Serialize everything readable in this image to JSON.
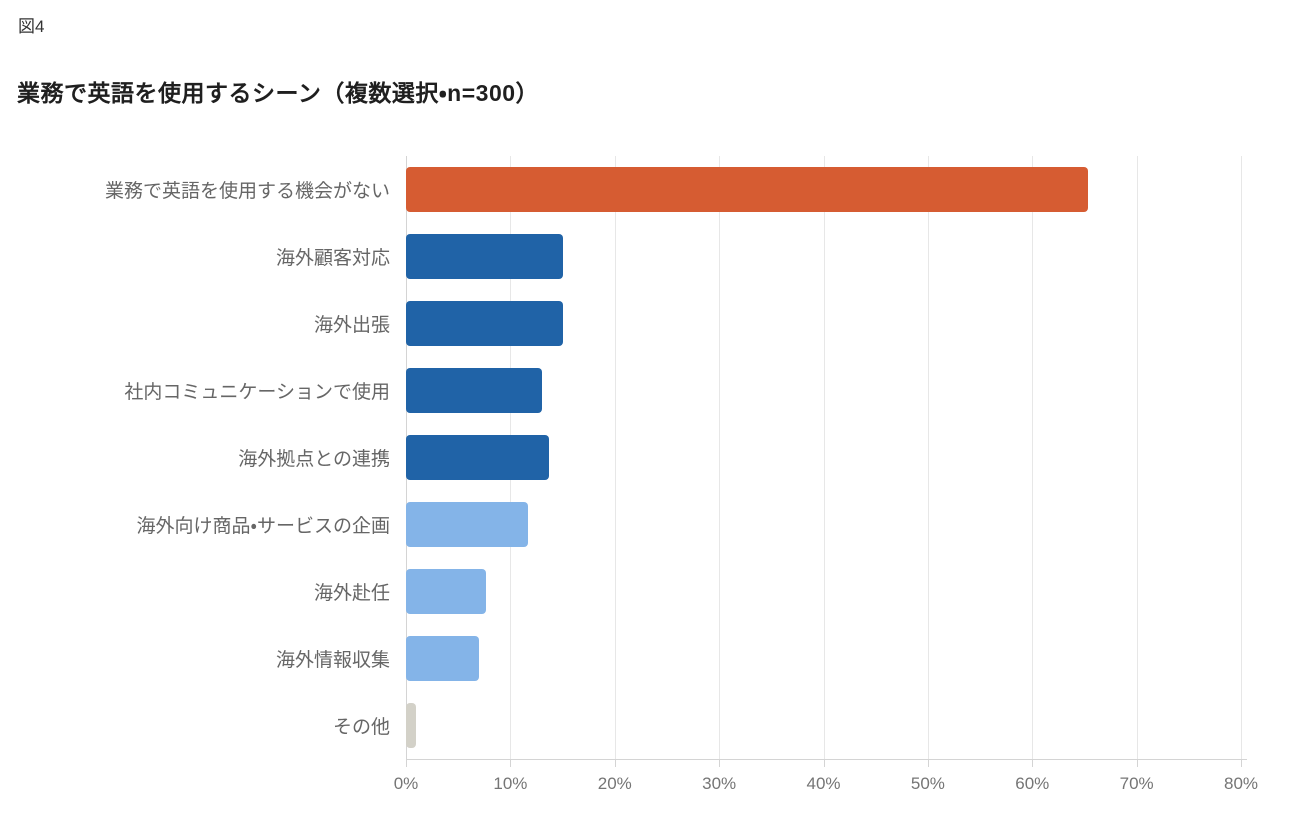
{
  "figure_label": "図4",
  "chart_data": {
    "type": "bar",
    "orientation": "horizontal",
    "title": "業務で英語を使用するシーン（複数選択・n=300）",
    "categories": [
      "業務で英語を使用する機会がない",
      "海外顧客対応",
      "海外出張",
      "社内コミュニケーションで使用",
      "海外拠点との連携",
      "海外向け商品・サービスの企画",
      "海外赴任",
      "海外情報収集",
      "その他"
    ],
    "values": [
      65.3,
      15.0,
      15.0,
      13.0,
      13.7,
      11.7,
      7.7,
      7.0,
      1.0
    ],
    "unit": "%",
    "bar_colors": [
      "#d65c32",
      "#2063a7",
      "#2063a7",
      "#2063a7",
      "#2063a7",
      "#84b4e8",
      "#84b4e8",
      "#84b4e8",
      "#d3d1c8"
    ],
    "xlabel": "",
    "ylabel": "",
    "xlim": [
      0,
      80
    ],
    "x_ticks": [
      "0%",
      "10%",
      "20%",
      "30%",
      "40%",
      "50%",
      "60%",
      "70%",
      "80%"
    ],
    "x_tick_values": [
      0,
      10,
      20,
      30,
      40,
      50,
      60,
      70,
      80
    ],
    "grid": true,
    "legend": "none",
    "colors_meta": {
      "accent_orange": "#d65c32",
      "dark_blue": "#2063a7",
      "light_blue": "#84b4e8",
      "neutral_gray": "#d3d1c8",
      "gridline": "#e7e7e7",
      "axis": "#d4d4d4",
      "label_text": "#666666",
      "tick_text": "#757575"
    }
  }
}
